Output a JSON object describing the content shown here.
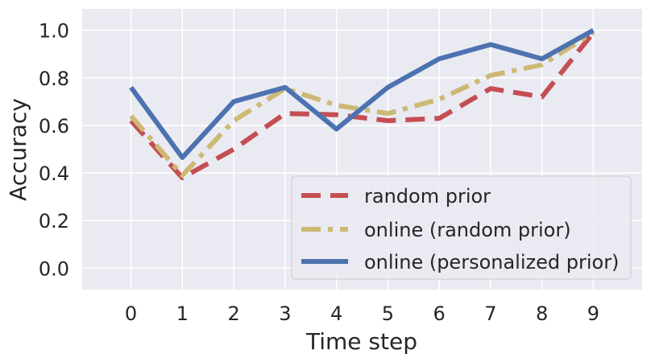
{
  "chart_data": {
    "type": "line",
    "title": "",
    "xlabel": "Time step",
    "ylabel": "Accuracy",
    "x": [
      0,
      1,
      2,
      3,
      4,
      5,
      6,
      7,
      8,
      9
    ],
    "xlim": [
      -0.95,
      9.95
    ],
    "ylim": [
      -0.09,
      1.09
    ],
    "xticks": [
      "0",
      "1",
      "2",
      "3",
      "4",
      "5",
      "6",
      "7",
      "8",
      "9"
    ],
    "yticks": [
      "0.0",
      "0.2",
      "0.4",
      "0.6",
      "0.8",
      "1.0"
    ],
    "grid": true,
    "legend_position": "lower-right",
    "series": [
      {
        "name": "random prior",
        "values": [
          0.62,
          0.38,
          0.5,
          0.65,
          0.645,
          0.62,
          0.63,
          0.755,
          0.72,
          0.99
        ],
        "color": "#c44e52",
        "style": "dashed"
      },
      {
        "name": "online (random prior)",
        "values": [
          0.64,
          0.39,
          0.62,
          0.755,
          0.685,
          0.65,
          0.71,
          0.81,
          0.855,
          0.99
        ],
        "color": "#ccb974",
        "style": "dashdot"
      },
      {
        "name": "online (personalized prior)",
        "values": [
          0.76,
          0.465,
          0.7,
          0.76,
          0.585,
          0.76,
          0.88,
          0.94,
          0.88,
          1.0
        ],
        "color": "#4c72b0",
        "style": "solid"
      }
    ]
  }
}
